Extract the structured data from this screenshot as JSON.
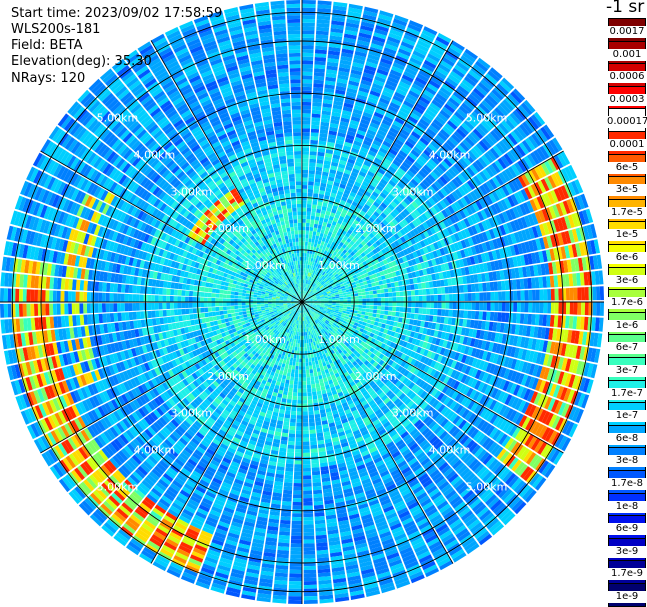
{
  "header": {
    "start_time": "Start time: 2023/09/02 17:58:59",
    "instrument": "WLS200s-181",
    "field": "Field: BETA",
    "elevation": "Elevation(deg): 35.30",
    "nrays": "NRays: 120"
  },
  "colorbar": {
    "units": "-1 sr",
    "labels": [
      "0.0017",
      "0.001",
      "0.0006",
      "0.0003",
      "0.00017",
      "0.0001",
      "6e-5",
      "3e-5",
      "1.7e-5",
      "1e-5",
      "6e-6",
      "3e-6",
      "1.7e-6",
      "1e-6",
      "6e-7",
      "3e-7",
      "1.7e-7",
      "1e-7",
      "6e-8",
      "3e-8",
      "1.7e-8",
      "1e-8",
      "6e-9",
      "3e-9",
      "1.7e-9",
      "1e-9"
    ],
    "colors": [
      "#7f0000",
      "#a80000",
      "#d40000",
      "#ff0000",
      "#ffffff",
      "#ff2a00",
      "#ff5a00",
      "#ff8a00",
      "#ffb400",
      "#ffdc00",
      "#f5ff00",
      "#d0ff14",
      "#a8ff3c",
      "#80ff64",
      "#5aff8e",
      "#38ffbe",
      "#1ff0e8",
      "#00cfff",
      "#00a6ff",
      "#0080ff",
      "#0058ff",
      "#0030ff",
      "#0010ee",
      "#0000c4",
      "#000098",
      "#00006e"
    ]
  },
  "chart_data": {
    "type": "heatmap",
    "projection": "polar-ppi",
    "field": "BETA",
    "nrays": 120,
    "range_km": [
      0,
      5.8
    ],
    "range_rings_km": [
      1.0,
      2.0,
      3.0,
      4.0,
      5.0
    ],
    "ring_labels": [
      "1.00km",
      "2.00km",
      "3.00km",
      "4.00km",
      "5.00km"
    ],
    "spoke_angles_deg": [
      0,
      30,
      60,
      90,
      120,
      150,
      180,
      210,
      240,
      270,
      300,
      330
    ],
    "value_range": [
      1e-09,
      0.0017
    ],
    "scale": "log",
    "features": [
      {
        "description_km": "aerosol layer ring",
        "range_km": [
          4.8,
          5.6
        ],
        "azimuth_deg": [
          200,
          280
        ],
        "beta": 3e-05
      },
      {
        "description_km": "aerosol layer ring",
        "range_km": [
          4.8,
          5.6
        ],
        "azimuth_deg": [
          60,
          130
        ],
        "beta": 3e-05
      },
      {
        "description_km": "patch",
        "range_km": [
          2.2,
          2.5
        ],
        "azimuth_deg": [
          300,
          330
        ],
        "beta": 3e-05
      }
    ]
  }
}
